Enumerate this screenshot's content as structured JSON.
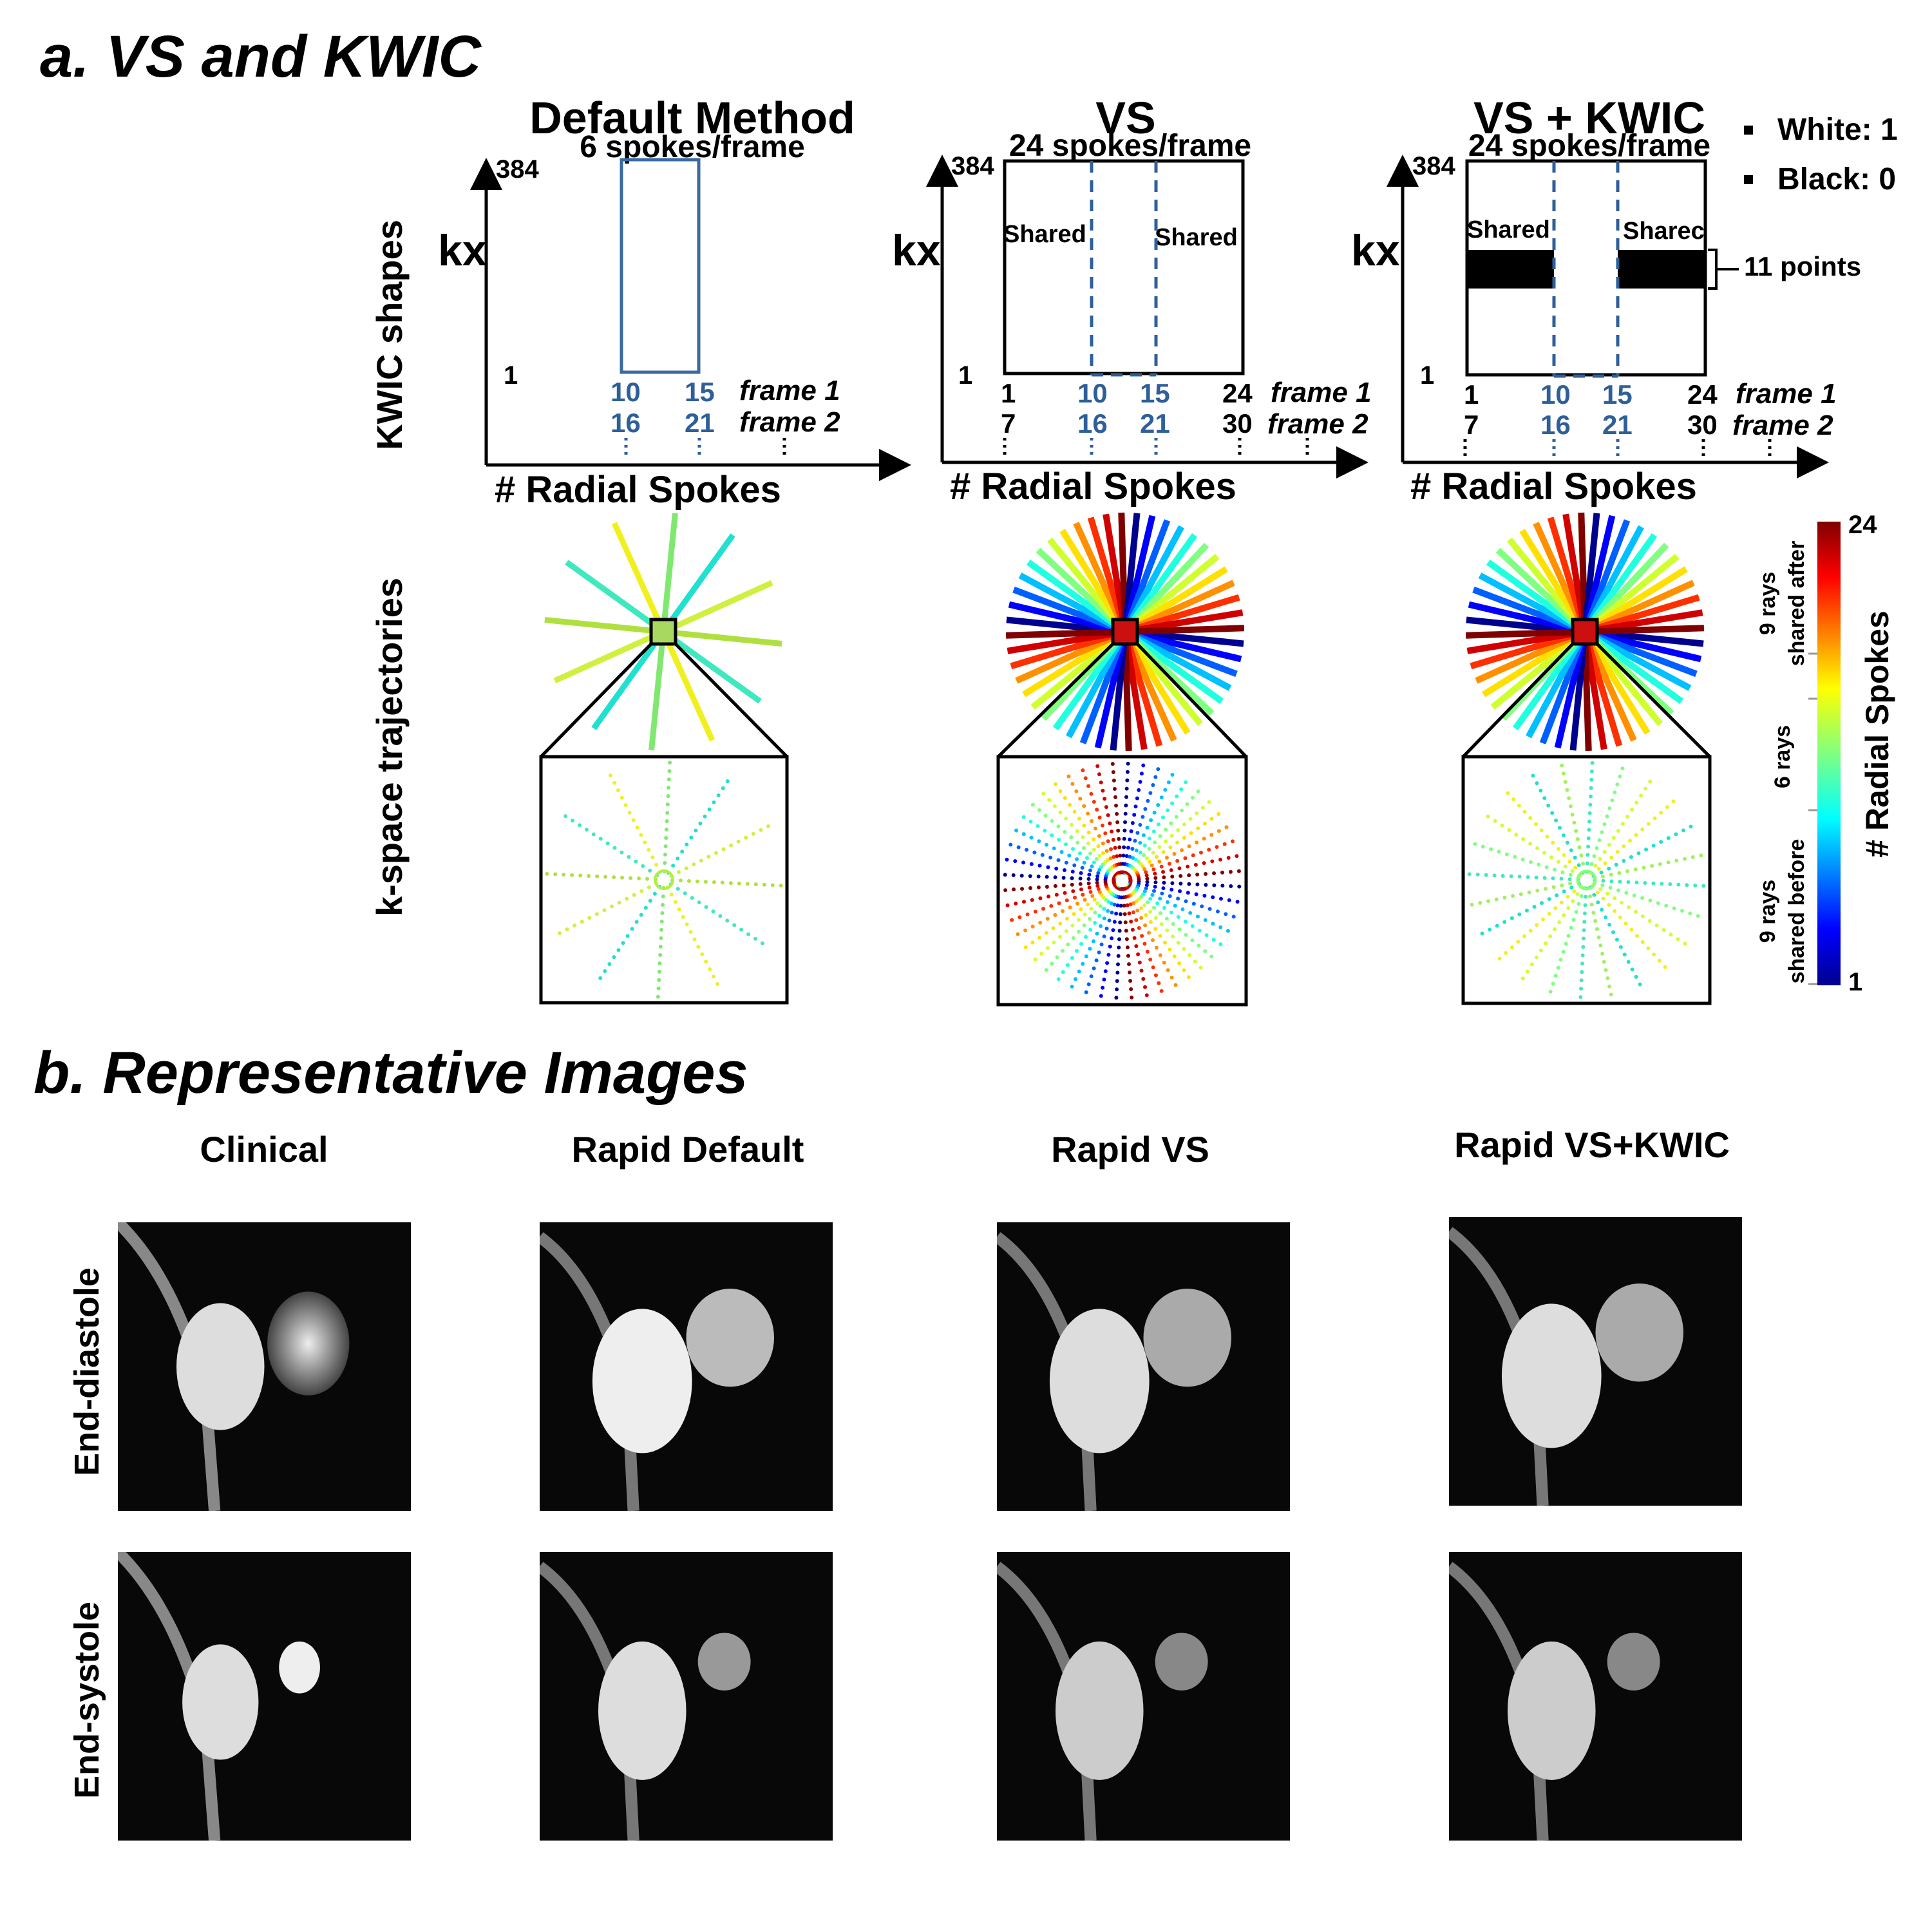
{
  "panel_a": {
    "heading": "a. VS and KWIC",
    "row_labels": {
      "kwic": "KWIC shapes",
      "kspace": "k-space trajectories"
    },
    "legend": {
      "white": "White: 1",
      "black": "Black: 0"
    },
    "methods": [
      {
        "title": "Default Method",
        "subtitle": "6 spokes/frame",
        "ylabel": "kx",
        "ytop": "384",
        "ybottom": "1",
        "xlabel": "# Radial Spokes",
        "shared_left": "",
        "shared_right": "",
        "frame1_ticks": [
          "",
          "10",
          "15",
          ""
        ],
        "frame2_ticks": [
          "",
          "16",
          "21",
          ""
        ],
        "frame1_label": "frame 1",
        "frame2_label": "frame 2"
      },
      {
        "title": "VS",
        "subtitle": "24 spokes/frame",
        "ylabel": "kx",
        "ytop": "384",
        "ybottom": "1",
        "xlabel": "# Radial Spokes",
        "shared_left": "Shared",
        "shared_right": "Shared",
        "frame1_ticks": [
          "1",
          "10",
          "15",
          "24"
        ],
        "frame2_ticks": [
          "7",
          "16",
          "21",
          "30"
        ],
        "frame1_label": "frame 1",
        "frame2_label": "frame 2"
      },
      {
        "title": "VS + KWIC",
        "subtitle": "24 spokes/frame",
        "ylabel": "kx",
        "ytop": "384",
        "ybottom": "1",
        "xlabel": "# Radial Spokes",
        "shared_left": "Shared",
        "shared_right": "Sharec",
        "frame1_ticks": [
          "1",
          "10",
          "15",
          "24"
        ],
        "frame2_ticks": [
          "7",
          "16",
          "21",
          "30"
        ],
        "frame1_label": "frame 1",
        "frame2_label": "frame 2",
        "points_label": "11 points"
      }
    ],
    "colorbar": {
      "top": "24",
      "bottom": "1",
      "title": "# Radial Spokes",
      "seg_after_1": "9 rays",
      "seg_after_2": "shared after",
      "seg_mid": "6 rays",
      "seg_before_1": "9 rays",
      "seg_before_2": "shared before"
    },
    "colors": {
      "blue_label": "#2e5f99",
      "frame_box": "#3b6aa0"
    }
  },
  "panel_b": {
    "heading": "b. Representative Images",
    "columns": [
      "Clinical",
      "Rapid Default",
      "Rapid VS",
      "Rapid VS+KWIC"
    ],
    "rows": [
      "End-diastole",
      "End-systole"
    ]
  }
}
